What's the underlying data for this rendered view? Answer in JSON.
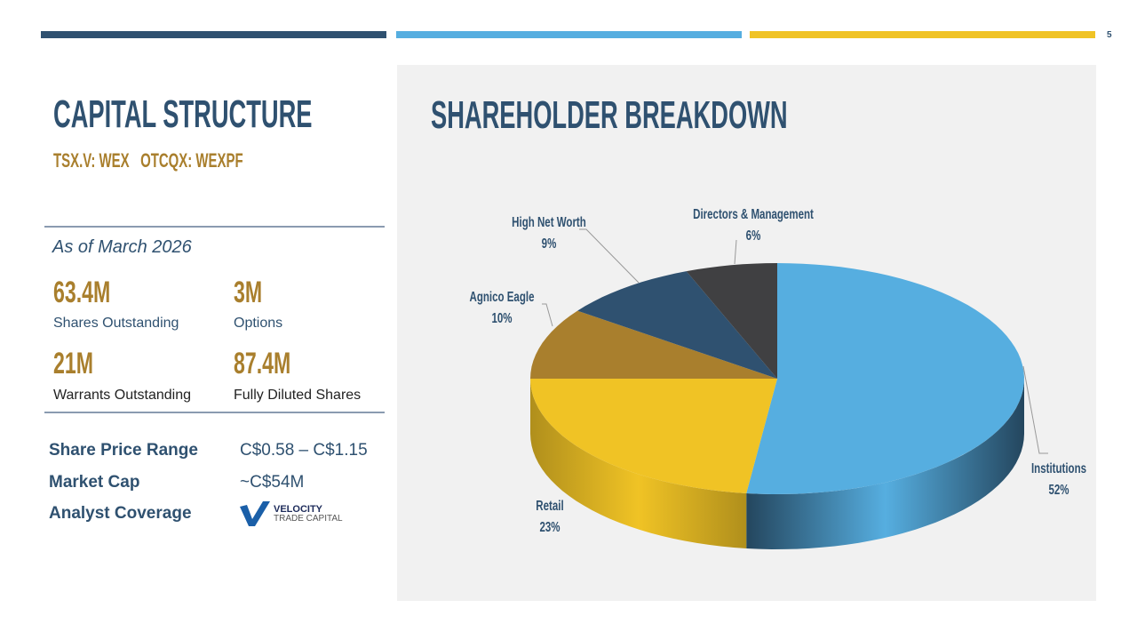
{
  "page_number": "5",
  "colors": {
    "navy": "#2F5170",
    "sky": "#56AEE0",
    "gold": "#F0C325",
    "bronze": "#A97F2D"
  },
  "left": {
    "title": "CAPITAL STRUCTURE",
    "ticker": "TSX.V: WEX   OTCQX: WEXPF",
    "as_of": "As of March 2026",
    "stats": [
      {
        "value": "63.4M",
        "label": "Shares Outstanding"
      },
      {
        "value": "3M",
        "label": "Options"
      },
      {
        "value": "21M",
        "label": "Warrants Outstanding"
      },
      {
        "value": "87.4M",
        "label": "Fully Diluted Shares"
      }
    ],
    "rows": [
      {
        "label": "Share Price Range",
        "value": "C$0.58 – C$1.15"
      },
      {
        "label": "Market Cap",
        "value": "~C$54M"
      },
      {
        "label": "Analyst Coverage",
        "logo_line1": "VELOCITY",
        "logo_line2": "TRADE CAPITAL"
      }
    ]
  },
  "chart_data": {
    "type": "pie",
    "title": "SHAREHOLDER BREAKDOWN",
    "categories": [
      "Institutions",
      "Retail",
      "Agnico Eagle",
      "High Net Worth",
      "Directors & Management"
    ],
    "values": [
      52,
      23,
      10,
      9,
      6
    ],
    "labels": [
      "52%",
      "23%",
      "10%",
      "9%",
      "6%"
    ],
    "colors": [
      "#56AEE0",
      "#F0C325",
      "#A97F2D",
      "#2F5170",
      "#404042"
    ],
    "side_colors": [
      "#24465E",
      "#B08F1C",
      "#7f5f22",
      "#203a52",
      "#2c2c2e"
    ],
    "style": "3d"
  }
}
